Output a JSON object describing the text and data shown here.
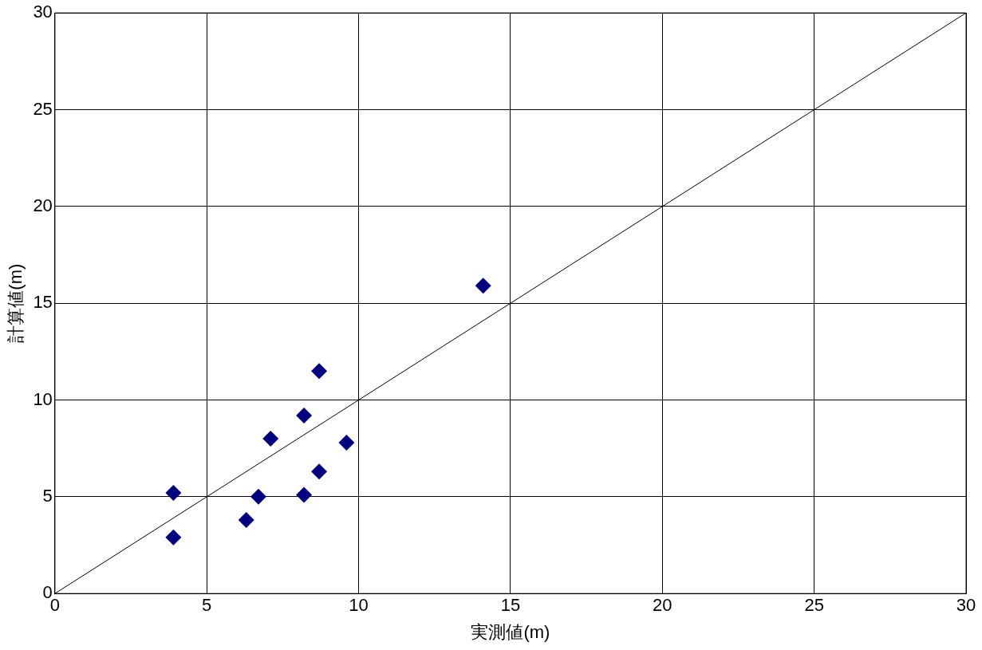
{
  "chart_data": {
    "type": "scatter",
    "xlabel": "実測値(m)",
    "ylabel": "計算値(m)",
    "xlim": [
      0,
      30
    ],
    "ylim": [
      0,
      30
    ],
    "xticks": [
      0,
      5,
      10,
      15,
      20,
      25,
      30
    ],
    "yticks": [
      0,
      5,
      10,
      15,
      20,
      25,
      30
    ],
    "grid": true,
    "legend": false,
    "marker": "diamond",
    "series": [
      {
        "color": "#000080",
        "x": [
          3.9,
          3.9,
          6.3,
          6.7,
          7.1,
          8.2,
          8.2,
          8.7,
          8.7,
          9.6,
          14.1
        ],
        "values": [
          5.2,
          2.9,
          3.8,
          5.0,
          8.0,
          5.1,
          9.2,
          6.3,
          11.5,
          7.8,
          15.9
        ]
      },
      {
        "type": "line",
        "color": "#000000",
        "marker": "none",
        "x": [
          0,
          30
        ],
        "values": [
          0,
          30
        ]
      }
    ]
  }
}
